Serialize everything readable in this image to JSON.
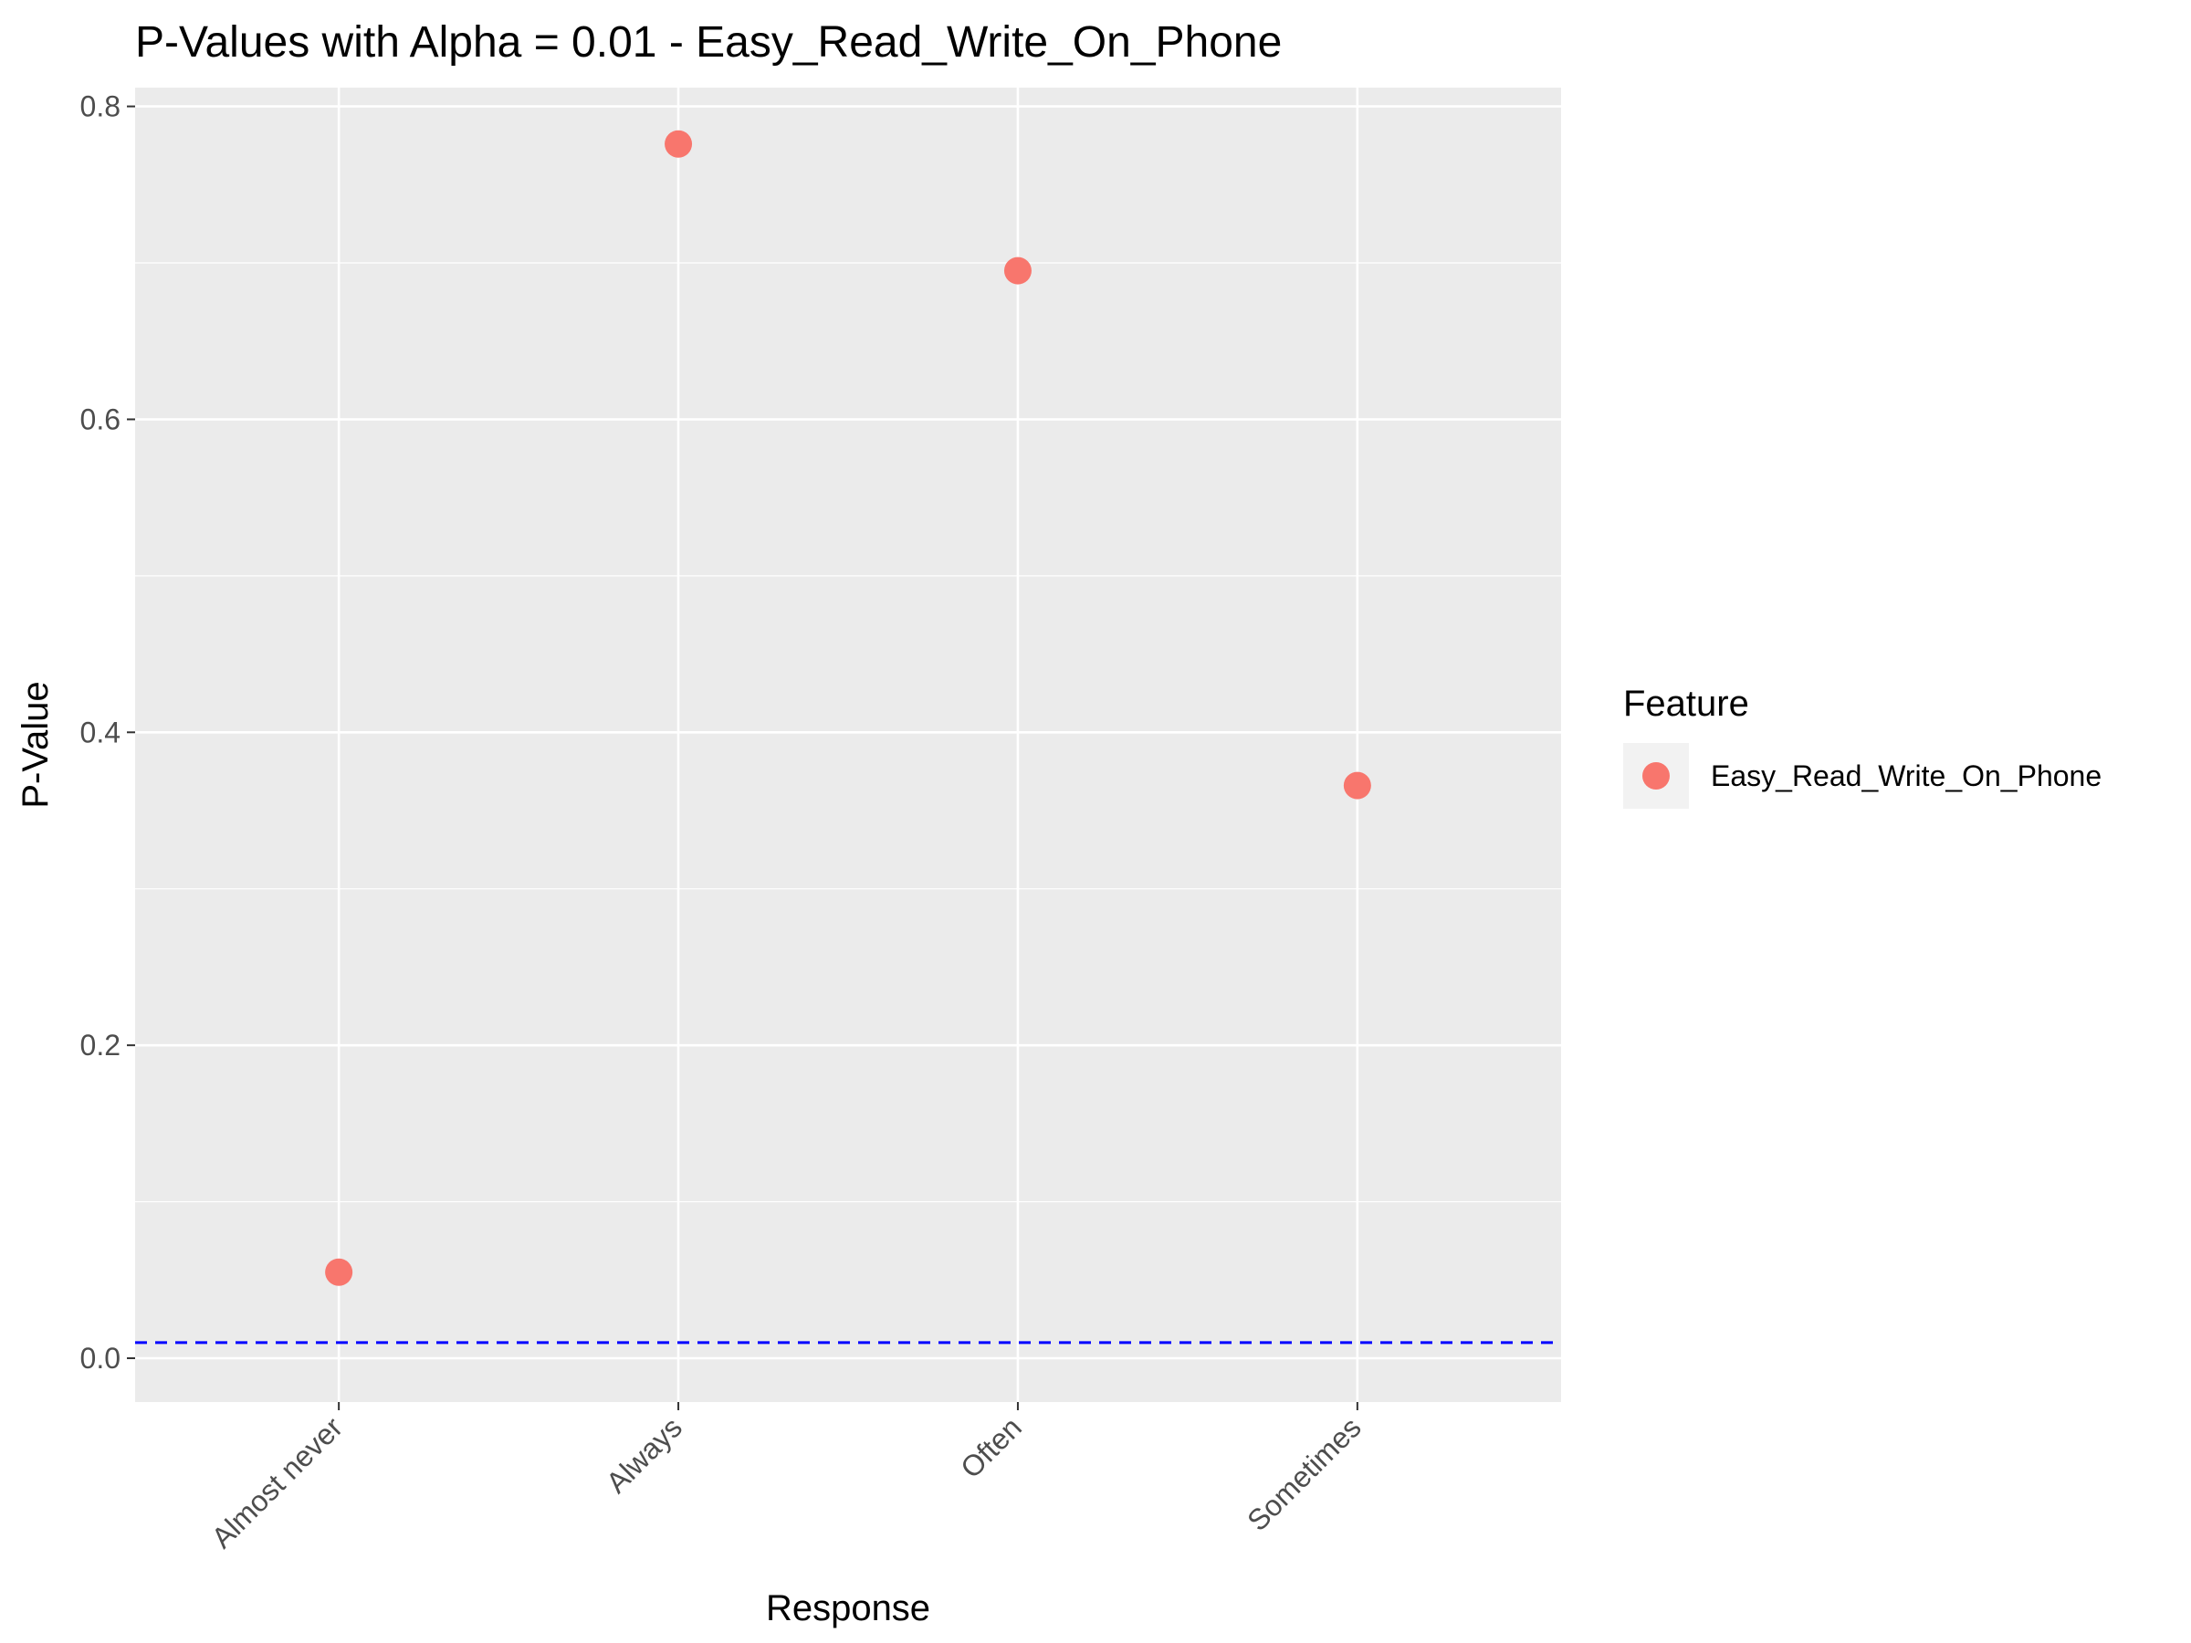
{
  "chart_data": {
    "type": "scatter",
    "title": "P-Values with Alpha = 0.01 - Easy_Read_Write_On_Phone",
    "xlabel": "Response",
    "ylabel": "P-Value",
    "categories": [
      "Almost never",
      "Always",
      "Often",
      "Sometimes"
    ],
    "series": [
      {
        "name": "Easy_Read_Write_On_Phone",
        "color": "#F8766D",
        "values": [
          0.055,
          0.776,
          0.695,
          0.366
        ]
      }
    ],
    "yticks": [
      0.0,
      0.2,
      0.4,
      0.6,
      0.8
    ],
    "ytick_labels": [
      "0.0",
      "0.2",
      "0.4",
      "0.6",
      "0.8"
    ],
    "ylim": [
      -0.028,
      0.812
    ],
    "alpha_line": {
      "value": 0.01,
      "color": "#0000FF",
      "style": "dashed"
    },
    "legend": {
      "title": "Feature",
      "position": "right"
    },
    "grid": true,
    "panel_background": "#EBEBEB"
  }
}
